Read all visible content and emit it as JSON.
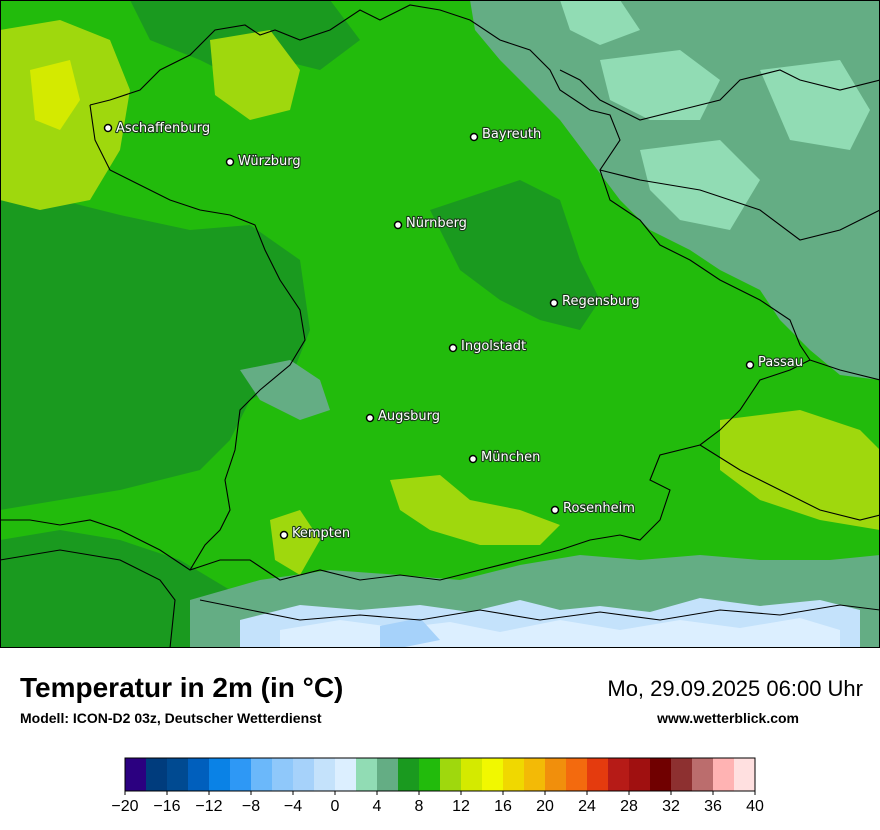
{
  "title": "Temperatur in 2m (in °C)",
  "model": "Modell: ICON-D2 03z, Deutscher Wetterdienst",
  "datetime": "Mo, 29.09.2025 06:00 Uhr",
  "website": "www.wetterblick.com",
  "cities": [
    {
      "name": "Aschaffenburg"
    },
    {
      "name": "Würzburg"
    },
    {
      "name": "Bayreuth"
    },
    {
      "name": "Nürnberg"
    },
    {
      "name": "Regensburg"
    },
    {
      "name": "Ingolstadt"
    },
    {
      "name": "Passau"
    },
    {
      "name": "Augsburg"
    },
    {
      "name": "München"
    },
    {
      "name": "Rosenheim"
    },
    {
      "name": "Kempten"
    }
  ],
  "legend": {
    "colors": [
      "#2b0080",
      "#003c7d",
      "#004a91",
      "#005fbd",
      "#0a82e6",
      "#2e98f5",
      "#6bb8fa",
      "#8fc8fa",
      "#a6d2fa",
      "#c4e2fb",
      "#dcefff",
      "#91dcb4",
      "#64ad84",
      "#1a9a1f",
      "#22bb0c",
      "#9fd80d",
      "#d4ea00",
      "#f1f800",
      "#f0d800",
      "#f3ba06",
      "#f18f0c",
      "#f36a0e",
      "#e43b0e",
      "#b61b17",
      "#a01010",
      "#700000",
      "#8d3030",
      "#bb6d6d",
      "#ffb3b3",
      "#ffe0e0"
    ],
    "ticks": [
      "−20",
      "−16",
      "−12",
      "−8",
      "−4",
      "0",
      "4",
      "8",
      "12",
      "16",
      "20",
      "24",
      "28",
      "32",
      "36",
      "40"
    ]
  }
}
